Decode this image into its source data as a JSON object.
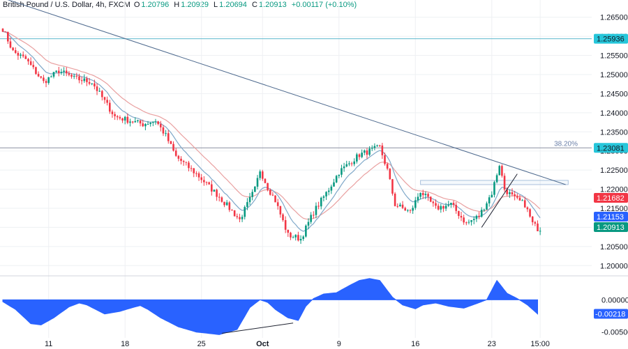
{
  "header": {
    "symbol": "British Pound / U.S. Dollar, 4h, FXCM",
    "open_label": "O",
    "open": "1.20796",
    "high_label": "H",
    "high": "1.20929",
    "low_label": "L",
    "low": "1.20694",
    "close_label": "C",
    "close": "1.20913",
    "change": "+0.00117 (+0.10%)"
  },
  "colors": {
    "up": "#089981",
    "down": "#F23645",
    "fast_ma": "#7FA8C9",
    "slow_ma": "#E9A0A0",
    "hline": "#5EB8CE",
    "trendline": "#4E6A8E",
    "macd_fill": "#2962FF",
    "grid": "#EEF0F3",
    "badge_close": "#089981",
    "badge_fast": "#2962FF",
    "badge_slow": "#F23645",
    "badge_level": "#26C6DA"
  },
  "chart_data": [
    {
      "type": "candlestick",
      "ylim": [
        1.1975,
        1.2695
      ],
      "y_ticks": [
        "1.26500",
        "1.26000",
        "1.25500",
        "1.25000",
        "1.24500",
        "1.24000",
        "1.23500",
        "1.23000",
        "1.22500",
        "1.22000",
        "1.21500",
        "1.21000",
        "1.20500",
        "1.20000"
      ],
      "x_ticks": [
        {
          "label": "11",
          "i": 18
        },
        {
          "label": "18",
          "i": 48
        },
        {
          "label": "25",
          "i": 78
        },
        {
          "label": "Oct",
          "i": 102
        },
        {
          "label": "9",
          "i": 132
        },
        {
          "label": "16",
          "i": 162
        },
        {
          "label": "23",
          "i": 192
        },
        {
          "label": "15:00",
          "i": 211
        }
      ],
      "anchors": [
        [
          0,
          1.262
        ],
        [
          4,
          1.256
        ],
        [
          9,
          1.254
        ],
        [
          16,
          1.248
        ],
        [
          22,
          1.251
        ],
        [
          28,
          1.249
        ],
        [
          35,
          1.248
        ],
        [
          44,
          1.239
        ],
        [
          55,
          1.237
        ],
        [
          60,
          1.238
        ],
        [
          64,
          1.234
        ],
        [
          68,
          1.2285
        ],
        [
          76,
          1.224
        ],
        [
          85,
          1.218
        ],
        [
          93,
          1.212
        ],
        [
          99,
          1.22
        ],
        [
          101,
          1.225
        ],
        [
          104,
          1.2205
        ],
        [
          107,
          1.217
        ],
        [
          112,
          1.208
        ],
        [
          117,
          1.207
        ],
        [
          122,
          1.214
        ],
        [
          128,
          1.22
        ],
        [
          132,
          1.2245
        ],
        [
          140,
          1.229
        ],
        [
          148,
          1.231
        ],
        [
          151,
          1.225
        ],
        [
          154,
          1.216
        ],
        [
          160,
          1.214
        ],
        [
          164,
          1.2195
        ],
        [
          170,
          1.215
        ],
        [
          176,
          1.216
        ],
        [
          182,
          1.211
        ],
        [
          187,
          1.213
        ],
        [
          192,
          1.219
        ],
        [
          195,
          1.2265
        ],
        [
          197,
          1.22
        ],
        [
          201,
          1.2175
        ],
        [
          205,
          1.216
        ],
        [
          208,
          1.211
        ],
        [
          211,
          1.2091
        ]
      ],
      "overlays": {
        "resistance_level": 1.25936,
        "fib_level": 1.23081,
        "fib_label": "38.20%",
        "trendline": {
          "from": [
            0,
            1.27
          ],
          "to": [
            221,
            1.2212
          ]
        },
        "support_line": {
          "from": [
            188,
            1.21
          ],
          "to": [
            202,
            1.224
          ]
        },
        "zone": {
          "from_i": 164,
          "to_i": 222,
          "y_top": 1.2223,
          "y_bottom": 1.2212
        }
      },
      "price_badges": [
        {
          "name": "level",
          "value": 1.25936,
          "text": "1.25936"
        },
        {
          "name": "fib",
          "value": 1.23081,
          "text": "1.23081"
        },
        {
          "name": "slow-ma",
          "value": 1.21682,
          "text": "1.21682"
        },
        {
          "name": "fast-ma",
          "value": 1.21153,
          "text": "1.21153"
        },
        {
          "name": "close",
          "value": 1.20913,
          "text": "1.20913"
        }
      ]
    },
    {
      "type": "area",
      "name": "oscillator",
      "ylim": [
        -0.0059,
        0.0036
      ],
      "y_ticks": [
        "0.00000",
        "-0.00500"
      ],
      "current_value": -0.00218,
      "current_text": "-0.00218",
      "bracket_line": {
        "from": [
          86,
          -0.0052
        ],
        "to": [
          114,
          -0.0036
        ]
      },
      "values": [
        [
          0,
          -0.0003
        ],
        [
          5,
          -0.0015
        ],
        [
          11,
          -0.0037
        ],
        [
          15,
          -0.0039
        ],
        [
          20,
          -0.0028
        ],
        [
          26,
          -0.0011
        ],
        [
          30,
          -0.0005
        ],
        [
          33,
          -0.0008
        ],
        [
          40,
          -0.0022
        ],
        [
          46,
          -0.0018
        ],
        [
          51,
          -0.0012
        ],
        [
          54,
          -0.0009
        ],
        [
          57,
          -0.0015
        ],
        [
          62,
          -0.0028
        ],
        [
          69,
          -0.0042
        ],
        [
          76,
          -0.005
        ],
        [
          85,
          -0.0054
        ],
        [
          92,
          -0.0046
        ],
        [
          97,
          -0.0012
        ],
        [
          101,
          0.0
        ],
        [
          104,
          -0.0004
        ],
        [
          107,
          -0.0015
        ],
        [
          112,
          -0.0028
        ],
        [
          116,
          -0.0032
        ],
        [
          119,
          -0.001
        ],
        [
          122,
          0.0002
        ],
        [
          126,
          0.0009
        ],
        [
          131,
          0.0011
        ],
        [
          137,
          0.0024
        ],
        [
          140,
          0.003
        ],
        [
          144,
          0.0033
        ],
        [
          148,
          0.003
        ],
        [
          153,
          0.0004
        ],
        [
          157,
          -0.0008
        ],
        [
          162,
          -0.0014
        ],
        [
          165,
          -0.0008
        ],
        [
          170,
          -0.0005
        ],
        [
          175,
          -0.001
        ],
        [
          181,
          -0.0013
        ],
        [
          186,
          -0.0006
        ],
        [
          190,
          0.0
        ],
        [
          194,
          0.003
        ],
        [
          198,
          0.001
        ],
        [
          202,
          0.0002
        ],
        [
          206,
          -0.0008
        ],
        [
          210,
          -0.0022
        ]
      ]
    }
  ]
}
